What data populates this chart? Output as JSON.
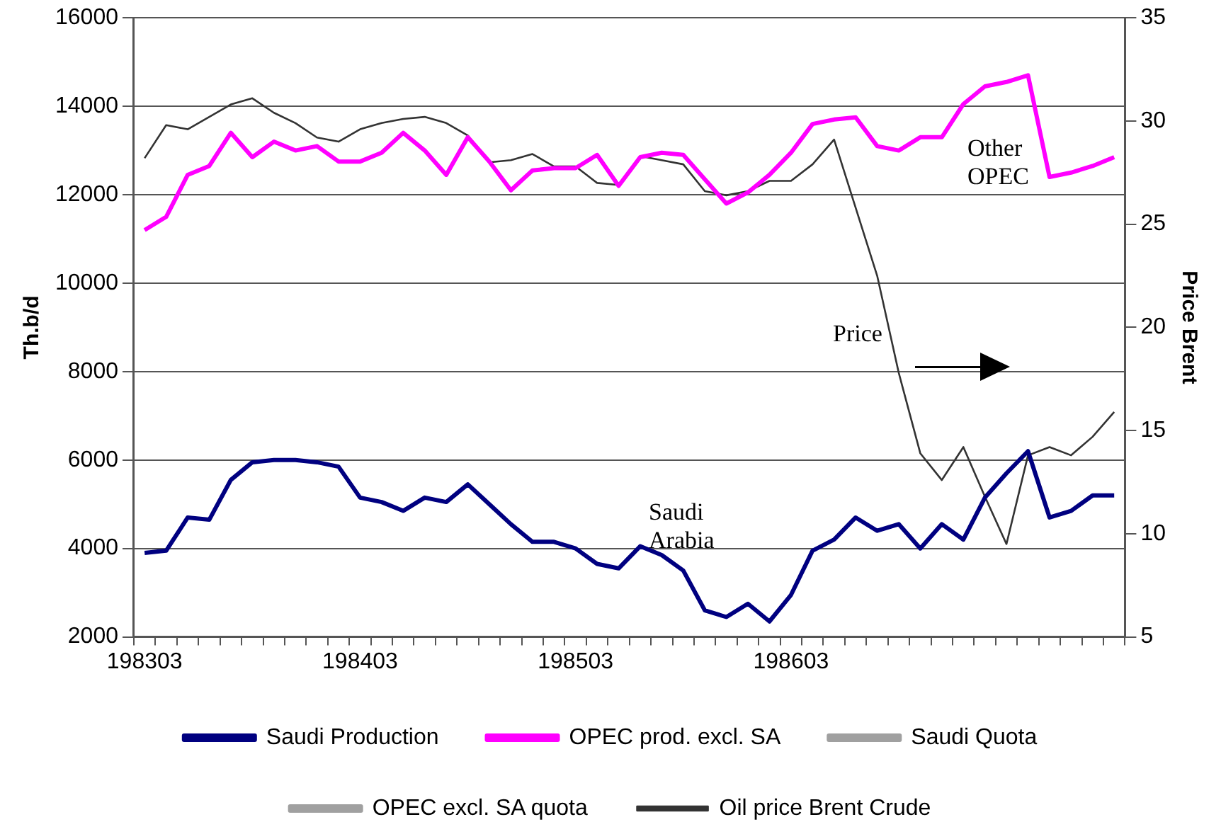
{
  "chart_data": {
    "type": "line",
    "categories": [
      "198303",
      null,
      null,
      null,
      null,
      null,
      null,
      null,
      null,
      null,
      "198403",
      null,
      null,
      null,
      null,
      null,
      null,
      null,
      null,
      null,
      "198503",
      null,
      null,
      null,
      null,
      null,
      null,
      null,
      null,
      null,
      "198603",
      null,
      null,
      null,
      null,
      null,
      null,
      null,
      null,
      null,
      null,
      null,
      null,
      null,
      null,
      null
    ],
    "ylabel": "Th.b/d",
    "y2label": "Price Brent",
    "ylim": [
      2000,
      16000
    ],
    "yticks": [
      2000,
      4000,
      6000,
      8000,
      10000,
      12000,
      14000,
      16000
    ],
    "y2lim": [
      5,
      35
    ],
    "y2ticks": [
      5,
      10,
      15,
      20,
      25,
      30,
      35
    ],
    "grid": "y",
    "legend": "bottom",
    "marker": "none",
    "line_style": "solid",
    "annotations": [
      "Other OPEC",
      "Price",
      "Saudi Arabia"
    ],
    "series": [
      {
        "name": "Saudi Production",
        "color": "#000080",
        "values": [
          3900,
          3950,
          4700,
          4650,
          5550,
          5950,
          6000,
          6000,
          5950,
          5850,
          5150,
          5050,
          4850,
          5150,
          5050,
          5450,
          5000,
          4550,
          4150,
          4150,
          4000,
          3650,
          3550,
          4050,
          3850,
          3500,
          2600,
          2450,
          2750,
          2350,
          2950,
          3950,
          4200,
          4700,
          4400,
          4550,
          4000,
          4550,
          4200,
          5150,
          5700,
          6200,
          4700,
          4850,
          5200,
          5200
        ]
      },
      {
        "name": "OPEC prod. excl. SA",
        "color": "#ff00ff",
        "values": [
          11200,
          11500,
          12450,
          12650,
          13400,
          12850,
          13200,
          13000,
          13100,
          12750,
          12750,
          12950,
          13400,
          13000,
          12450,
          13300,
          12750,
          12100,
          12550,
          12600,
          12600,
          12900,
          12200,
          12850,
          12950,
          12900,
          12350,
          11800,
          12050,
          12450,
          12950,
          13600,
          13700,
          13750,
          13100,
          13000,
          13300,
          13300,
          14050,
          14450,
          14550,
          14700,
          12400,
          12500,
          12650,
          12850
        ]
      },
      {
        "name": "Saudi Quota",
        "color": "#a0a0a0",
        "values": [
          null,
          null,
          null,
          null,
          null,
          null,
          null,
          null,
          null,
          null,
          null,
          null,
          null,
          null,
          null,
          null,
          null,
          null,
          null,
          null,
          null,
          null,
          null,
          null,
          null,
          null,
          null,
          null,
          null,
          null,
          null,
          null,
          null,
          null,
          null,
          null,
          null,
          null,
          null,
          null,
          null,
          null,
          null,
          null,
          null,
          null
        ]
      },
      {
        "name": "OPEC excl. SA quota",
        "color": "#a0a0a0",
        "values": [
          null,
          null,
          null,
          null,
          null,
          null,
          null,
          null,
          null,
          null,
          null,
          null,
          null,
          null,
          null,
          null,
          null,
          null,
          null,
          null,
          null,
          null,
          null,
          null,
          null,
          null,
          null,
          null,
          null,
          null,
          null,
          null,
          null,
          null,
          null,
          null,
          null,
          null,
          null,
          null,
          null,
          null,
          null,
          null,
          null,
          null
        ]
      },
      {
        "name": "Oil price Brent Crude",
        "color": "#333333",
        "axis": "y2",
        "values": [
          28.2,
          29.8,
          29.6,
          30.2,
          30.8,
          31.1,
          30.4,
          29.9,
          29.2,
          29.0,
          29.6,
          29.9,
          30.1,
          30.2,
          29.9,
          29.3,
          28.0,
          28.1,
          28.4,
          27.8,
          27.8,
          27.0,
          26.9,
          28.3,
          28.1,
          27.9,
          26.6,
          26.4,
          26.6,
          27.1,
          27.1,
          27.9,
          29.1,
          25.8,
          22.5,
          17.8,
          13.9,
          12.6,
          14.2,
          11.8,
          9.5,
          13.8,
          14.2,
          13.8,
          14.7,
          15.9
        ]
      }
    ]
  }
}
